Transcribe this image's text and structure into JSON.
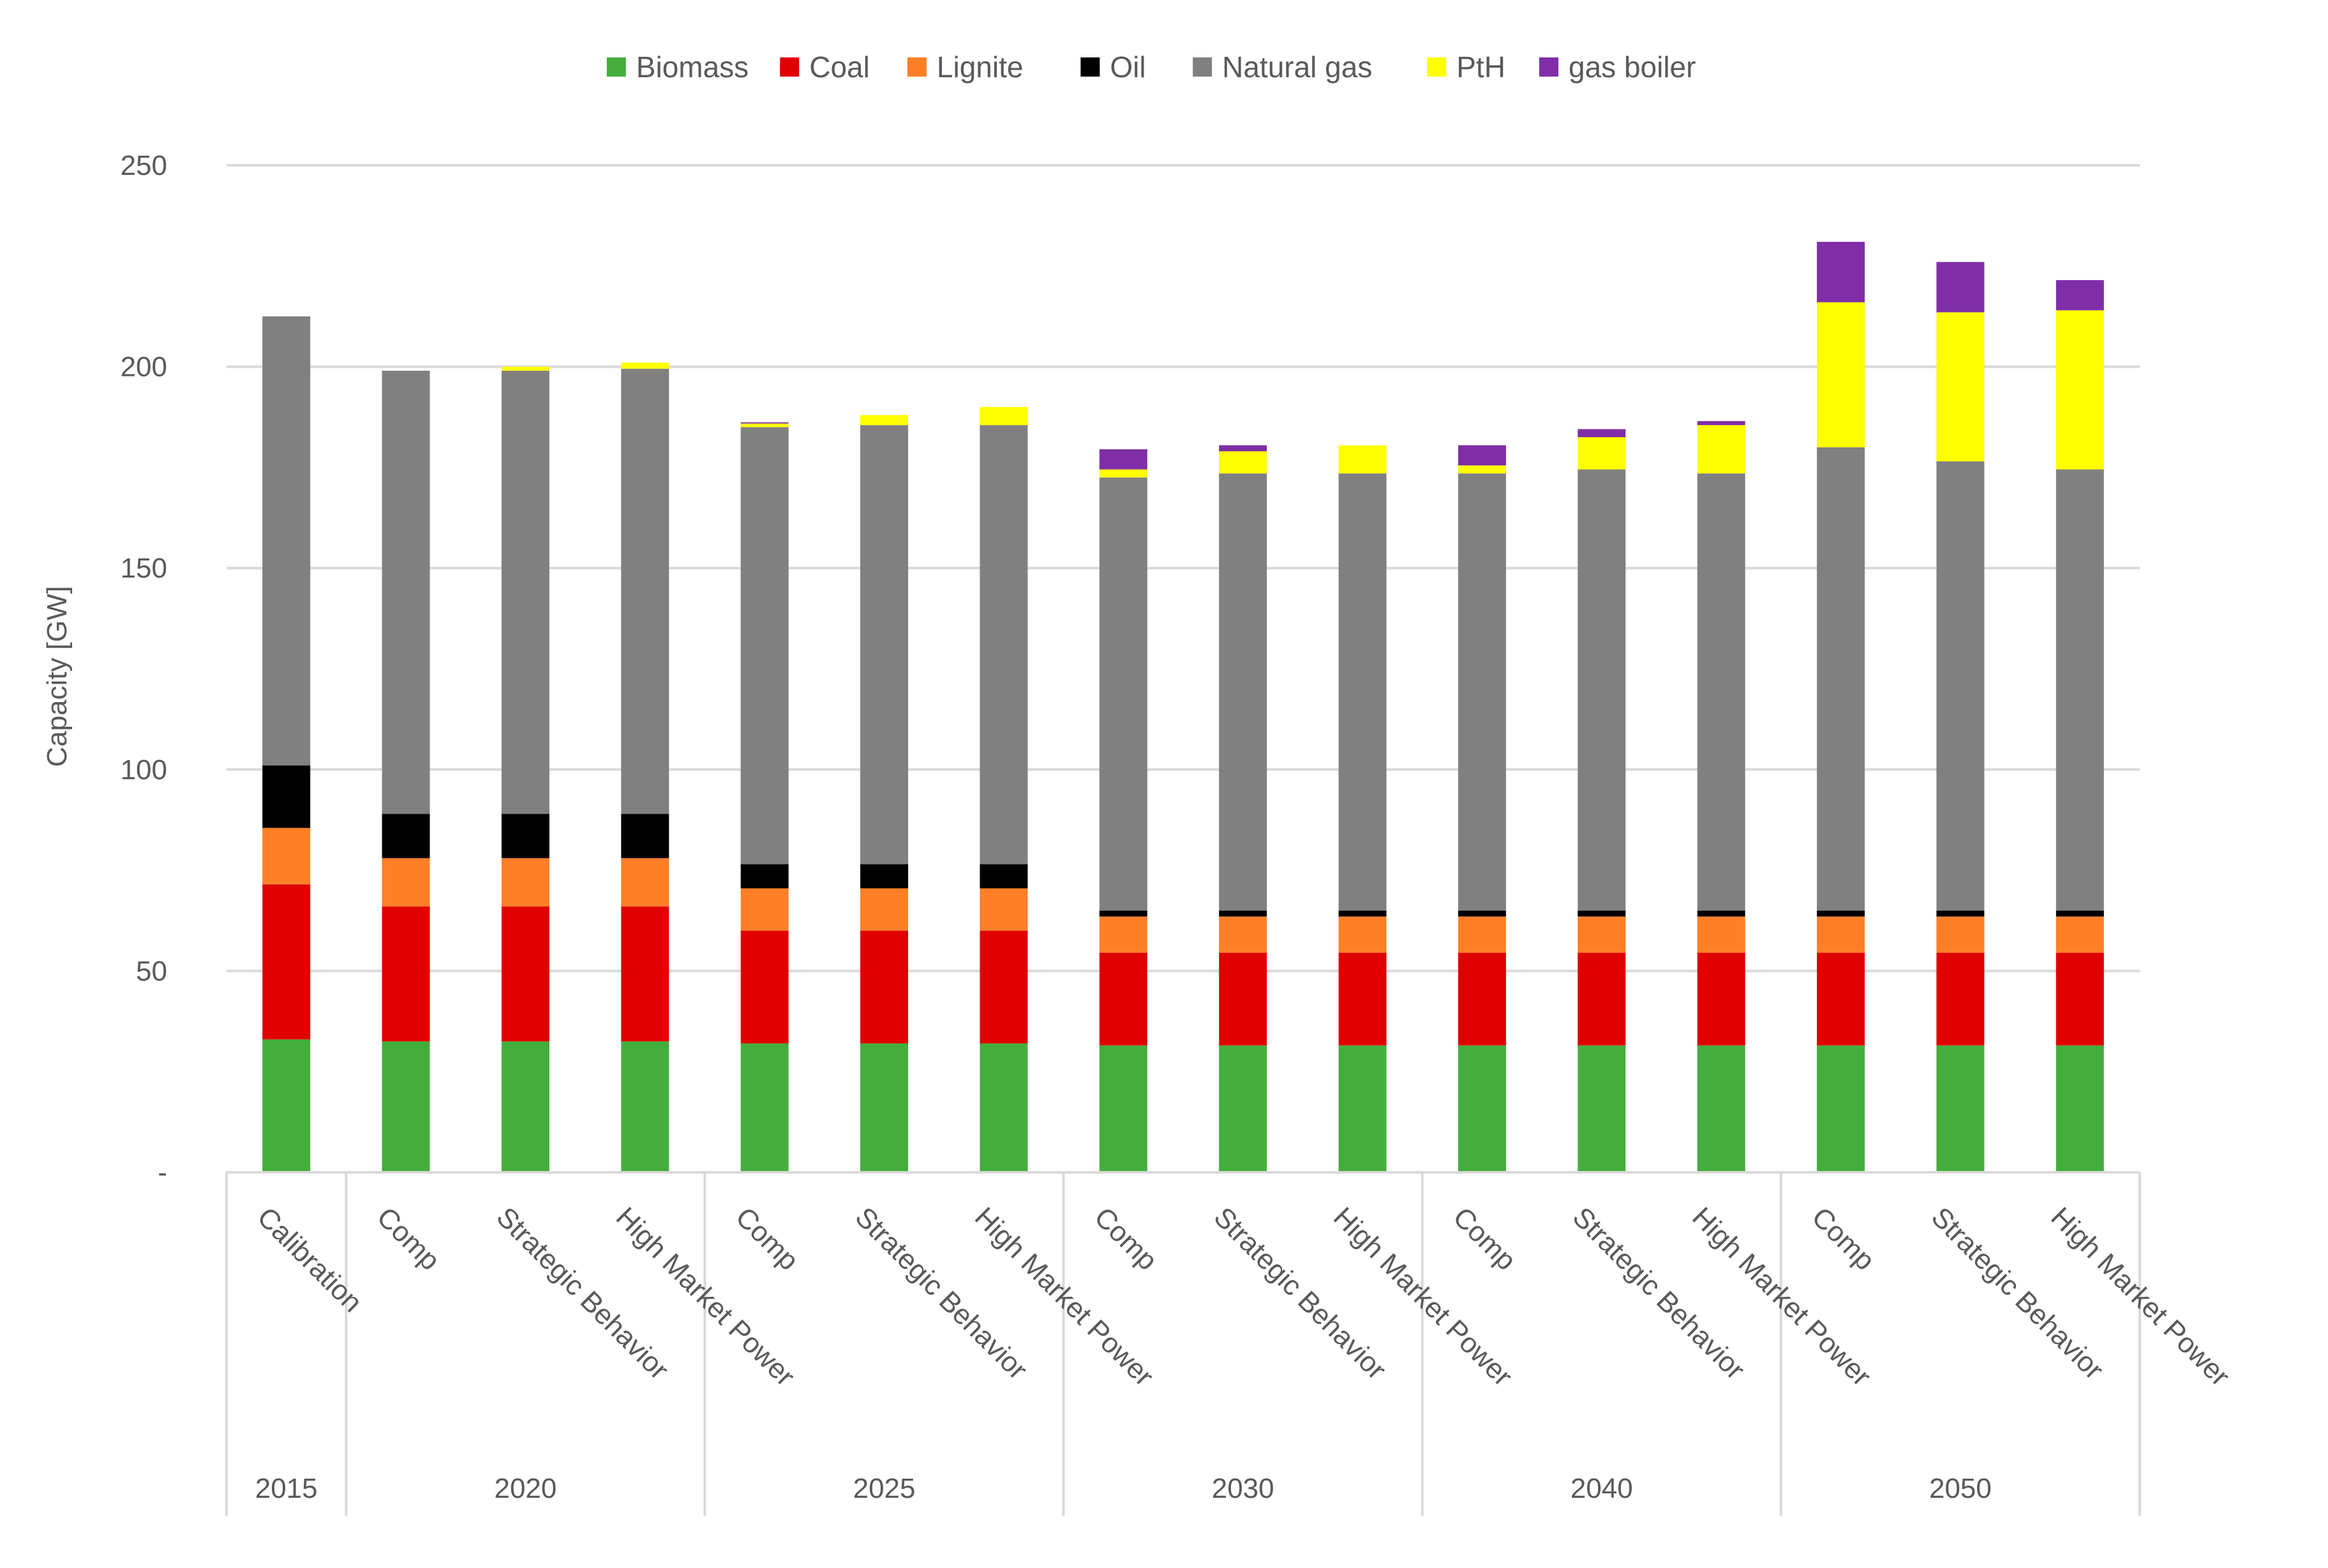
{
  "chart_data": {
    "type": "bar",
    "stacked": true,
    "title": "",
    "xlabel": "",
    "ylabel": "Capacity [GW]",
    "ylim": [
      0,
      250
    ],
    "yticks": [
      0,
      50,
      100,
      150,
      200,
      250
    ],
    "ytick_labels": [
      "-",
      "50",
      "100",
      "150",
      "200",
      "250"
    ],
    "grid": true,
    "legend_position": "top",
    "categories": [
      "Calibration",
      "Comp",
      "Strategic Behavior",
      "High Market Power",
      "Comp",
      "Strategic Behavior",
      "High Market Power",
      "Comp",
      "Strategic Behavior",
      "High Market Power",
      "Comp",
      "Strategic Behavior",
      "High Market Power",
      "Comp",
      "Strategic Behavior",
      "High Market Power"
    ],
    "groups": [
      {
        "label": "2015",
        "count": 1
      },
      {
        "label": "2020",
        "count": 3
      },
      {
        "label": "2025",
        "count": 3
      },
      {
        "label": "2030",
        "count": 3
      },
      {
        "label": "2040",
        "count": 3
      },
      {
        "label": "2050",
        "count": 3
      }
    ],
    "series": [
      {
        "name": "Biomass",
        "color": "#44ae3c",
        "values": [
          33,
          32.5,
          32.5,
          32.5,
          32,
          32,
          32,
          31.5,
          31.5,
          31.5,
          31.5,
          31.5,
          31.5,
          31.5,
          31.5,
          31.5
        ]
      },
      {
        "name": "Coal",
        "color": "#e00000",
        "values": [
          38.5,
          33.5,
          33.5,
          33.5,
          28,
          28,
          28,
          23,
          23,
          23,
          23,
          23,
          23,
          23,
          23,
          23
        ]
      },
      {
        "name": "Lignite",
        "color": "#ff7f27",
        "values": [
          14,
          12,
          12,
          12,
          10.5,
          10.5,
          10.5,
          9,
          9,
          9,
          9,
          9,
          9,
          9,
          9,
          9
        ]
      },
      {
        "name": "Oil",
        "color": "#000000",
        "values": [
          15.5,
          11,
          11,
          11,
          6,
          6,
          6,
          1.5,
          1.5,
          1.5,
          1.5,
          1.5,
          1.5,
          1.5,
          1.5,
          1.5
        ]
      },
      {
        "name": "Natural gas",
        "color": "#808080",
        "values": [
          111.5,
          110,
          110,
          110.5,
          108.5,
          109,
          109,
          107.5,
          108.5,
          108.5,
          108.5,
          109.5,
          108.5,
          115,
          111.5,
          109.5
        ]
      },
      {
        "name": "PtH",
        "color": "#ffff00",
        "values": [
          0,
          0,
          1,
          1.5,
          0.9,
          2.5,
          4.5,
          2,
          5.5,
          7,
          2,
          8,
          12,
          36,
          37,
          39.5
        ]
      },
      {
        "name": "gas boiler",
        "color": "#7f2ea8",
        "values": [
          0,
          0,
          0,
          0,
          0.3,
          0,
          0,
          5,
          1.5,
          0,
          5,
          2,
          1,
          15,
          12.5,
          7.5
        ]
      }
    ]
  }
}
